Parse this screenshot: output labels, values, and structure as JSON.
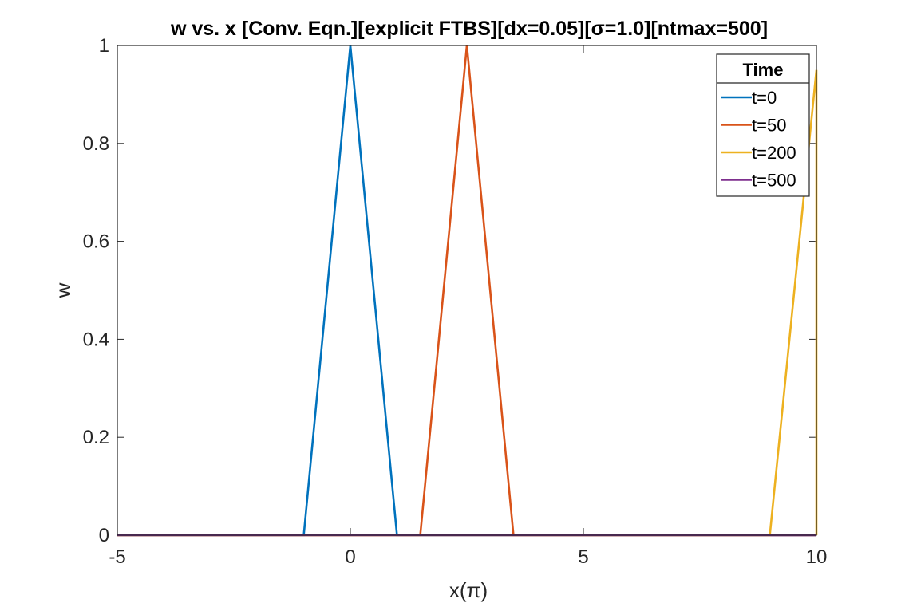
{
  "chart_data": {
    "type": "line",
    "title": "w vs. x [Conv. Eqn.][explicit FTBS][dx=0.05][σ=1.0][ntmax=500]",
    "xlabel": "x(π)",
    "ylabel": "w",
    "xlim": [
      -5,
      10
    ],
    "ylim": [
      0,
      1
    ],
    "xticks": [
      -5,
      0,
      5,
      10
    ],
    "xtick_labels": [
      "-5",
      "0",
      "5",
      "10"
    ],
    "yticks": [
      0,
      0.2,
      0.4,
      0.6,
      0.8,
      1
    ],
    "ytick_labels": [
      "0",
      "0.2",
      "0.4",
      "0.6",
      "0.8",
      "1"
    ],
    "grid": false,
    "legend": {
      "title": "Time",
      "position": "top-right"
    },
    "series": [
      {
        "name": "t=0",
        "color": "#0072BD",
        "x": [
          -5,
          -1,
          0,
          1,
          10
        ],
        "y": [
          0,
          0,
          1,
          0,
          0
        ]
      },
      {
        "name": "t=50",
        "color": "#D95319",
        "x": [
          -5,
          1.5,
          2.5,
          3.5,
          10
        ],
        "y": [
          0,
          0,
          1,
          0,
          0
        ]
      },
      {
        "name": "t=200",
        "color": "#EDB120",
        "x": [
          -5,
          9,
          10,
          10
        ],
        "y": [
          0,
          0,
          0.95,
          0
        ]
      },
      {
        "name": "t=500",
        "color": "#7E2F8E",
        "x": [
          -5,
          10
        ],
        "y": [
          0,
          0
        ]
      }
    ]
  }
}
